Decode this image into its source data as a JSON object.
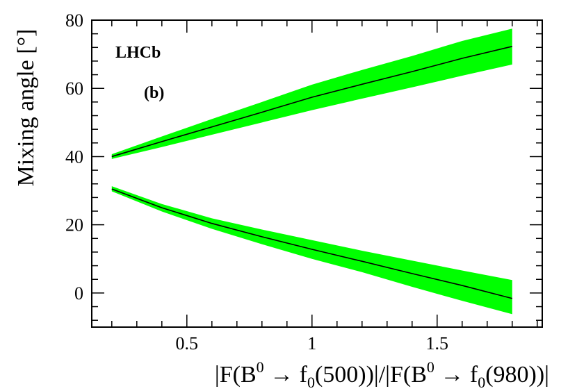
{
  "chart_data": {
    "type": "area",
    "xlabel_parts": [
      "|F(B",
      "0",
      " → f",
      "0",
      "(500))|/|F(B",
      "0",
      " → f",
      "0",
      "(980))|"
    ],
    "ylabel": "Mixing angle [°]",
    "xlim": [
      0.12,
      1.92
    ],
    "ylim": [
      -10,
      80
    ],
    "x_ticks": [
      0.5,
      1,
      1.5
    ],
    "x_tick_labels": [
      "0.5",
      "1",
      "1.5"
    ],
    "y_ticks": [
      0,
      20,
      40,
      60,
      80
    ],
    "y_tick_labels": [
      "0",
      "20",
      "40",
      "60",
      "80"
    ],
    "grid": false,
    "annotations": [
      "LHCb",
      "(b)"
    ],
    "band_color": "#00ff00",
    "line_color": "#000000",
    "series": [
      {
        "x": [
          0.2,
          0.4,
          0.6,
          0.8,
          1.0,
          1.2,
          1.4,
          1.6,
          1.8
        ],
        "y": [
          40.0,
          44.4,
          48.7,
          53.0,
          57.4,
          61.2,
          64.9,
          68.8,
          72.3
        ],
        "y_low": [
          39.3,
          42.8,
          46.4,
          50.0,
          53.6,
          57.0,
          60.3,
          63.7,
          67.0
        ],
        "y_high": [
          40.7,
          45.9,
          51.0,
          56.0,
          61.1,
          65.4,
          69.5,
          73.9,
          77.5
        ]
      },
      {
        "x": [
          0.2,
          0.4,
          0.6,
          0.8,
          1.0,
          1.2,
          1.4,
          1.6,
          1.8
        ],
        "y": [
          30.5,
          25.0,
          20.4,
          16.5,
          12.8,
          9.3,
          5.7,
          2.2,
          -1.6
        ],
        "y_low": [
          29.8,
          23.9,
          18.8,
          14.3,
          10.0,
          6.1,
          1.8,
          -2.3,
          -6.2
        ],
        "y_high": [
          31.3,
          26.1,
          21.9,
          18.6,
          15.5,
          12.4,
          9.5,
          6.6,
          3.8
        ]
      }
    ]
  }
}
